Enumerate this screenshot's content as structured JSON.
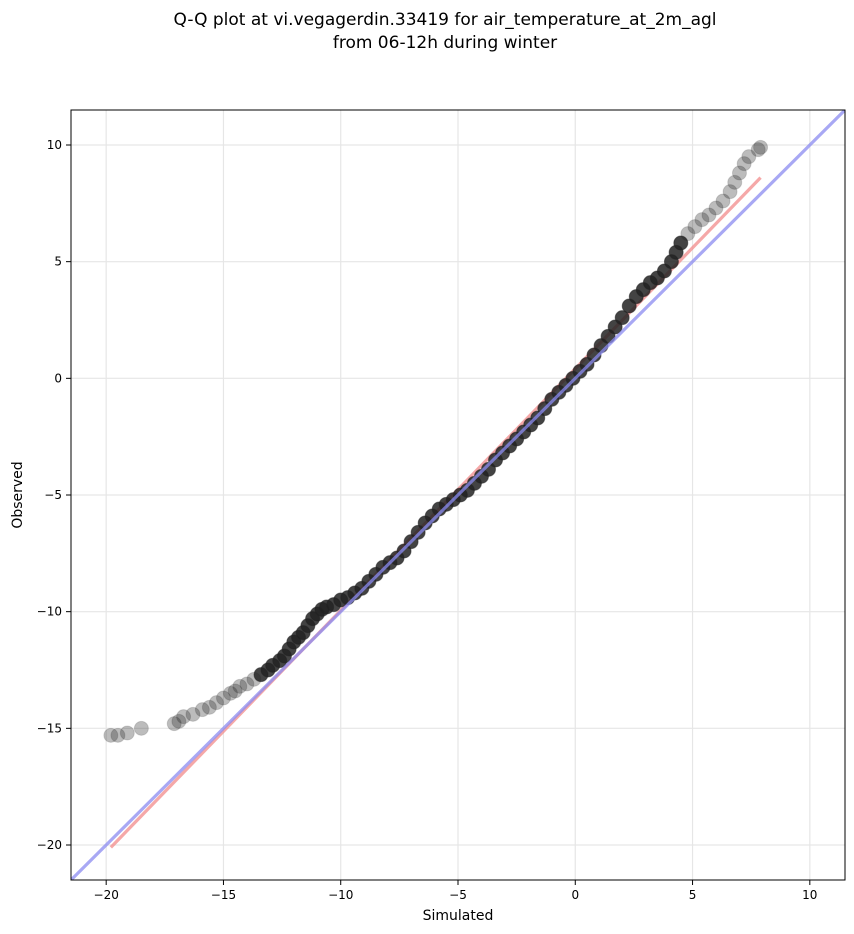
{
  "chart_data": {
    "type": "scatter",
    "title_lines": [
      "Q-Q plot at vi.vegagerdin.33419 for air_temperature_at_2m_agl",
      "from 06-12h during winter"
    ],
    "xlabel": "Simulated",
    "ylabel": "Observed",
    "xlim": [
      -21.5,
      11.5
    ],
    "ylim": [
      -21.5,
      11.5
    ],
    "xticks": [
      -20,
      -15,
      -10,
      -5,
      0,
      5,
      10
    ],
    "yticks": [
      -20,
      -15,
      -10,
      -5,
      0,
      5,
      10
    ],
    "xtick_labels": [
      "−20",
      "−15",
      "−10",
      "−5",
      "0",
      "5",
      "10"
    ],
    "ytick_labels": [
      "−20",
      "−15",
      "−10",
      "−5",
      "0",
      "5",
      "10"
    ],
    "grid": true,
    "colors": {
      "points": "#222222",
      "reference_line": "#8b8bf0",
      "fit_line": "#f28b8b"
    },
    "reference_line": {
      "name": "",
      "x": [
        -21.5,
        11.5
      ],
      "y": [
        -21.5,
        11.5
      ]
    },
    "fit_line": {
      "name": "",
      "x": [
        -19.8,
        7.9
      ],
      "y": [
        -20.1,
        8.6
      ]
    },
    "series": [
      {
        "name": "",
        "points": [
          [
            -19.8,
            -15.3
          ],
          [
            -19.5,
            -15.3
          ],
          [
            -19.1,
            -15.2
          ],
          [
            -18.5,
            -15.0
          ],
          [
            -17.1,
            -14.8
          ],
          [
            -16.9,
            -14.7
          ],
          [
            -16.7,
            -14.5
          ],
          [
            -16.3,
            -14.4
          ],
          [
            -15.9,
            -14.2
          ],
          [
            -15.6,
            -14.1
          ],
          [
            -15.3,
            -13.9
          ],
          [
            -15.0,
            -13.7
          ],
          [
            -14.7,
            -13.5
          ],
          [
            -14.5,
            -13.4
          ],
          [
            -14.3,
            -13.2
          ],
          [
            -14.0,
            -13.1
          ],
          [
            -13.7,
            -12.9
          ],
          [
            -13.4,
            -12.7
          ],
          [
            -13.1,
            -12.5
          ],
          [
            -12.9,
            -12.3
          ],
          [
            -12.6,
            -12.1
          ],
          [
            -12.4,
            -11.9
          ],
          [
            -12.2,
            -11.6
          ],
          [
            -12.0,
            -11.3
          ],
          [
            -11.8,
            -11.1
          ],
          [
            -11.6,
            -10.9
          ],
          [
            -11.4,
            -10.6
          ],
          [
            -11.2,
            -10.3
          ],
          [
            -11.0,
            -10.1
          ],
          [
            -10.8,
            -9.9
          ],
          [
            -10.6,
            -9.8
          ],
          [
            -10.3,
            -9.7
          ],
          [
            -10.0,
            -9.5
          ],
          [
            -9.7,
            -9.4
          ],
          [
            -9.4,
            -9.2
          ],
          [
            -9.1,
            -9.0
          ],
          [
            -8.8,
            -8.7
          ],
          [
            -8.5,
            -8.4
          ],
          [
            -8.2,
            -8.1
          ],
          [
            -7.9,
            -7.9
          ],
          [
            -7.6,
            -7.7
          ],
          [
            -7.3,
            -7.4
          ],
          [
            -7.0,
            -7.0
          ],
          [
            -6.7,
            -6.6
          ],
          [
            -6.4,
            -6.2
          ],
          [
            -6.1,
            -5.9
          ],
          [
            -5.8,
            -5.6
          ],
          [
            -5.5,
            -5.4
          ],
          [
            -5.2,
            -5.2
          ],
          [
            -4.9,
            -5.0
          ],
          [
            -4.6,
            -4.8
          ],
          [
            -4.3,
            -4.5
          ],
          [
            -4.0,
            -4.2
          ],
          [
            -3.7,
            -3.9
          ],
          [
            -3.4,
            -3.5
          ],
          [
            -3.1,
            -3.2
          ],
          [
            -2.8,
            -2.9
          ],
          [
            -2.5,
            -2.6
          ],
          [
            -2.2,
            -2.3
          ],
          [
            -1.9,
            -2.0
          ],
          [
            -1.6,
            -1.7
          ],
          [
            -1.3,
            -1.3
          ],
          [
            -1.0,
            -0.9
          ],
          [
            -0.7,
            -0.6
          ],
          [
            -0.4,
            -0.3
          ],
          [
            -0.1,
            0.0
          ],
          [
            0.2,
            0.3
          ],
          [
            0.5,
            0.6
          ],
          [
            0.8,
            1.0
          ],
          [
            1.1,
            1.4
          ],
          [
            1.4,
            1.8
          ],
          [
            1.7,
            2.2
          ],
          [
            2.0,
            2.6
          ],
          [
            2.3,
            3.1
          ],
          [
            2.6,
            3.5
          ],
          [
            2.9,
            3.8
          ],
          [
            3.2,
            4.1
          ],
          [
            3.5,
            4.3
          ],
          [
            3.8,
            4.6
          ],
          [
            4.1,
            5.0
          ],
          [
            4.3,
            5.4
          ],
          [
            4.5,
            5.8
          ],
          [
            4.8,
            6.2
          ],
          [
            5.1,
            6.5
          ],
          [
            5.4,
            6.8
          ],
          [
            5.7,
            7.0
          ],
          [
            6.0,
            7.3
          ],
          [
            6.3,
            7.6
          ],
          [
            6.6,
            8.0
          ],
          [
            6.8,
            8.4
          ],
          [
            7.0,
            8.8
          ],
          [
            7.2,
            9.2
          ],
          [
            7.4,
            9.5
          ],
          [
            7.8,
            9.8
          ],
          [
            7.9,
            9.9
          ]
        ]
      }
    ]
  }
}
